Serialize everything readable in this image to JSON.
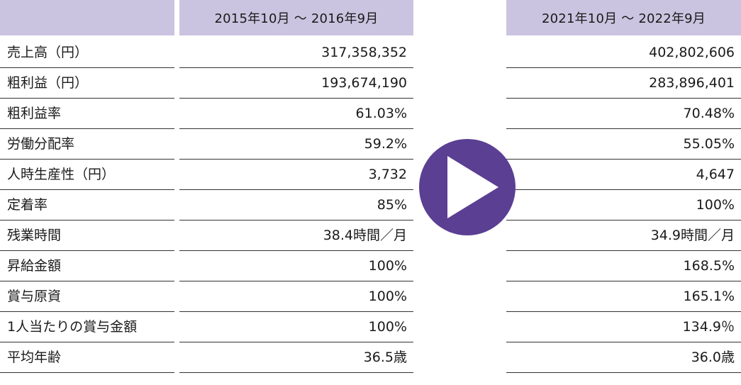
{
  "header": {
    "period_before": "2015年10月 ～ 2016年9月",
    "period_after": "2021年10月 ～ 2022年9月"
  },
  "colors": {
    "header_bg": "#cbc4e0",
    "arrow": "#5b3f93"
  },
  "arrow_icon": "play-arrow-icon",
  "rows": [
    {
      "label": "売上高（円）",
      "before": "317,358,352",
      "after": "402,802,606"
    },
    {
      "label": "粗利益（円）",
      "before": "193,674,190",
      "after": "283,896,401"
    },
    {
      "label": "粗利益率",
      "before": "61.03%",
      "after": "70.48%"
    },
    {
      "label": "労働分配率",
      "before": "59.2%",
      "after": "55.05%"
    },
    {
      "label": "人時生産性（円）",
      "before": "3,732",
      "after": "4,647"
    },
    {
      "label": "定着率",
      "before": "85%",
      "after": "100%"
    },
    {
      "label": "残業時間",
      "before": "38.4時間／月",
      "after": "34.9時間／月"
    },
    {
      "label": "昇給金額",
      "before": "100%",
      "after": "168.5%"
    },
    {
      "label": "賞与原資",
      "before": "100%",
      "after": "165.1%"
    },
    {
      "label": "1人当たりの賞与金額",
      "before": "100%",
      "after": "134.9％"
    },
    {
      "label": "平均年齢",
      "before": "36.5歳",
      "after": "36.0歳"
    }
  ]
}
